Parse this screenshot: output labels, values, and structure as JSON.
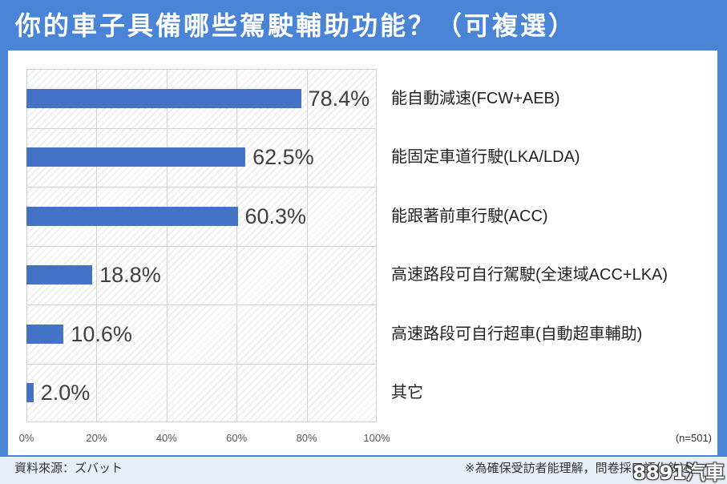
{
  "colors": {
    "frame": "#4a84d6",
    "panel": "#ffffff",
    "bar": "#4472c4",
    "title_text": "#ffffff",
    "footer_bg": "#e8eef8"
  },
  "chart_data": {
    "type": "bar",
    "orientation": "horizontal",
    "title": "你的車子具備哪些駕駛輔助功能？（可複選）",
    "categories": [
      "能自動減速(FCW+AEB)",
      "能固定車道行駛(LKA/LDA)",
      "能跟著前車行駛(ACC)",
      "高速路段可自行駕駛(全速域ACC+LKA)",
      "高速路段可自行超車(自動超車輔助)",
      "其它"
    ],
    "values": [
      78.4,
      62.5,
      60.3,
      18.8,
      10.6,
      2.0
    ],
    "value_labels": [
      "78.4%",
      "62.5%",
      "60.3%",
      "18.8%",
      "10.6%",
      "2.0%"
    ],
    "xlim": [
      0,
      100
    ],
    "x_tick_values": [
      0,
      20,
      40,
      60,
      80,
      100
    ],
    "x_tick_labels": [
      "0%",
      "20%",
      "40%",
      "60%",
      "80%",
      "100%"
    ],
    "grid": true,
    "sample_size_label": "(n=501)"
  },
  "footer": {
    "source": "資料來源：ズバット",
    "note": "※為確保受訪者能理解，問卷採口語化敘述"
  },
  "watermark": "8891汽車"
}
